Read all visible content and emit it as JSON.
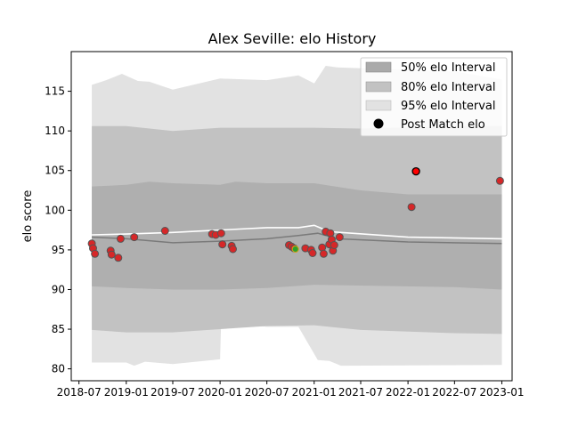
{
  "chart_data": {
    "type": "scatter",
    "title": "Alex Seville: elo History",
    "xlabel": "",
    "ylabel": "elo score",
    "xlim": [
      "2018-06-01",
      "2023-02-10"
    ],
    "ylim": [
      78.5,
      120
    ],
    "x_ticks": [
      "2018-07",
      "2019-01",
      "2019-07",
      "2020-01",
      "2020-07",
      "2021-01",
      "2021-07",
      "2022-01",
      "2022-07",
      "2023-01"
    ],
    "y_ticks": [
      80,
      85,
      90,
      95,
      100,
      105,
      110,
      115
    ],
    "grid": false,
    "legend_position": "top-right",
    "legend": [
      "50% elo Interval",
      "80% elo Interval",
      "95% elo Interval",
      "Post Match elo"
    ],
    "colors": {
      "band_50": "#aaaaaa",
      "band_80": "#c2c2c2",
      "band_95": "#e2e2e2",
      "median_line": "#7a7a7a",
      "mean_line": "#ffffff",
      "point_fill": "#d62728",
      "point_edge": "#555555",
      "highlight_point_fill": "#ff0000",
      "highlight_point_edge": "#000000",
      "recent_point_fill": "#2ca02c",
      "recent_point_edge": "#d4a017"
    },
    "bands": [
      {
        "name": "95% elo Interval",
        "lower": [
          [
            "2018-08-20",
            80.8
          ],
          [
            "2019-01-01",
            80.8
          ],
          [
            "2019-02-01",
            80.4
          ],
          [
            "2019-03-15",
            80.9
          ],
          [
            "2019-07-01",
            80.6
          ],
          [
            "2020-01-01",
            81.2
          ],
          [
            "2020-01-05",
            86.0
          ],
          [
            "2020-07-01",
            85.3
          ],
          [
            "2020-11-01",
            85.3
          ],
          [
            "2021-01-15",
            81.1
          ],
          [
            "2021-03-01",
            81.0
          ],
          [
            "2021-04-15",
            80.4
          ],
          [
            "2023-01-01",
            80.5
          ]
        ],
        "upper": [
          [
            "2018-08-20",
            115.8
          ],
          [
            "2018-10-15",
            116.4
          ],
          [
            "2018-12-15",
            117.2
          ],
          [
            "2019-02-15",
            116.3
          ],
          [
            "2019-04-01",
            116.2
          ],
          [
            "2019-07-01",
            115.2
          ],
          [
            "2020-01-01",
            116.6
          ],
          [
            "2020-07-01",
            116.4
          ],
          [
            "2020-11-01",
            117.0
          ],
          [
            "2021-01-01",
            116.0
          ],
          [
            "2021-02-15",
            118.2
          ],
          [
            "2021-04-01",
            118.0
          ],
          [
            "2022-07-01",
            117.5
          ],
          [
            "2023-01-01",
            116.5
          ]
        ]
      },
      {
        "name": "80% elo Interval",
        "lower": [
          [
            "2018-08-20",
            84.9
          ],
          [
            "2019-01-01",
            84.6
          ],
          [
            "2019-07-01",
            84.6
          ],
          [
            "2020-01-01",
            85.0
          ],
          [
            "2020-07-01",
            85.4
          ],
          [
            "2021-01-01",
            85.5
          ],
          [
            "2021-07-01",
            84.9
          ],
          [
            "2022-07-01",
            84.5
          ],
          [
            "2023-01-01",
            84.4
          ]
        ],
        "upper": [
          [
            "2018-08-20",
            110.6
          ],
          [
            "2019-01-01",
            110.6
          ],
          [
            "2019-07-01",
            110.0
          ],
          [
            "2020-01-01",
            110.4
          ],
          [
            "2020-07-01",
            110.4
          ],
          [
            "2021-01-01",
            110.4
          ],
          [
            "2021-07-01",
            110.3
          ],
          [
            "2022-07-01",
            110.6
          ],
          [
            "2023-01-01",
            110.6
          ]
        ]
      },
      {
        "name": "50% elo Interval",
        "lower": [
          [
            "2018-08-20",
            90.4
          ],
          [
            "2019-01-01",
            90.2
          ],
          [
            "2019-07-01",
            90.0
          ],
          [
            "2020-01-01",
            90.0
          ],
          [
            "2020-07-01",
            90.2
          ],
          [
            "2021-01-01",
            90.6
          ],
          [
            "2021-07-01",
            90.5
          ],
          [
            "2022-07-01",
            90.3
          ],
          [
            "2023-01-01",
            90.0
          ]
        ],
        "upper": [
          [
            "2018-08-20",
            103.0
          ],
          [
            "2019-01-01",
            103.2
          ],
          [
            "2019-04-01",
            103.6
          ],
          [
            "2019-07-01",
            103.4
          ],
          [
            "2020-01-01",
            103.2
          ],
          [
            "2020-03-01",
            103.6
          ],
          [
            "2020-07-01",
            103.4
          ],
          [
            "2021-01-01",
            103.4
          ],
          [
            "2021-07-01",
            102.5
          ],
          [
            "2022-01-01",
            102.0
          ],
          [
            "2023-01-01",
            102.0
          ]
        ]
      }
    ],
    "lines": [
      {
        "role": "median",
        "points": [
          [
            "2018-08-20",
            96.6
          ],
          [
            "2019-01-01",
            96.4
          ],
          [
            "2019-07-01",
            95.9
          ],
          [
            "2020-01-01",
            96.1
          ],
          [
            "2020-07-01",
            96.4
          ],
          [
            "2020-11-01",
            96.8
          ],
          [
            "2021-01-15",
            97.1
          ],
          [
            "2021-04-01",
            96.4
          ],
          [
            "2022-01-01",
            96.0
          ],
          [
            "2023-01-01",
            95.8
          ]
        ]
      },
      {
        "role": "mean",
        "points": [
          [
            "2018-08-20",
            96.9
          ],
          [
            "2019-01-01",
            97.0
          ],
          [
            "2019-07-01",
            97.2
          ],
          [
            "2020-01-01",
            97.5
          ],
          [
            "2020-07-01",
            97.8
          ],
          [
            "2020-11-01",
            97.8
          ],
          [
            "2021-01-01",
            98.1
          ],
          [
            "2021-03-01",
            97.3
          ],
          [
            "2022-01-01",
            96.6
          ],
          [
            "2023-01-01",
            96.4
          ]
        ]
      }
    ],
    "points": [
      {
        "x": "2018-08-20",
        "y": 95.8
      },
      {
        "x": "2018-08-25",
        "y": 95.2
      },
      {
        "x": "2018-09-01",
        "y": 94.5
      },
      {
        "x": "2018-11-01",
        "y": 94.9
      },
      {
        "x": "2018-11-05",
        "y": 94.4
      },
      {
        "x": "2018-12-01",
        "y": 94.0
      },
      {
        "x": "2018-12-10",
        "y": 96.4
      },
      {
        "x": "2019-02-01",
        "y": 96.6
      },
      {
        "x": "2019-06-01",
        "y": 97.4
      },
      {
        "x": "2019-12-01",
        "y": 97.0
      },
      {
        "x": "2019-12-15",
        "y": 96.9
      },
      {
        "x": "2020-01-05",
        "y": 97.1
      },
      {
        "x": "2020-01-10",
        "y": 95.7
      },
      {
        "x": "2020-02-15",
        "y": 95.5
      },
      {
        "x": "2020-02-20",
        "y": 95.1
      },
      {
        "x": "2020-09-25",
        "y": 95.6
      },
      {
        "x": "2020-10-05",
        "y": 95.4
      },
      {
        "x": "2020-10-15",
        "y": 95.2
      },
      {
        "x": "2020-11-28",
        "y": 95.2
      },
      {
        "x": "2020-12-20",
        "y": 95.0
      },
      {
        "x": "2020-12-26",
        "y": 94.6
      },
      {
        "x": "2021-02-01",
        "y": 95.3
      },
      {
        "x": "2021-02-07",
        "y": 94.5
      },
      {
        "x": "2021-02-15",
        "y": 97.3
      },
      {
        "x": "2021-03-01",
        "y": 95.7
      },
      {
        "x": "2021-03-05",
        "y": 97.1
      },
      {
        "x": "2021-03-10",
        "y": 96.3
      },
      {
        "x": "2021-03-15",
        "y": 94.9
      },
      {
        "x": "2021-03-20",
        "y": 95.6
      },
      {
        "x": "2021-04-10",
        "y": 96.6
      },
      {
        "x": "2022-01-15",
        "y": 100.4
      },
      {
        "x": "2022-12-25",
        "y": 103.7
      }
    ],
    "highlight_point": {
      "x": "2022-02-01",
      "y": 104.9
    },
    "recent_point": {
      "x": "2020-10-20",
      "y": 95.1
    }
  }
}
